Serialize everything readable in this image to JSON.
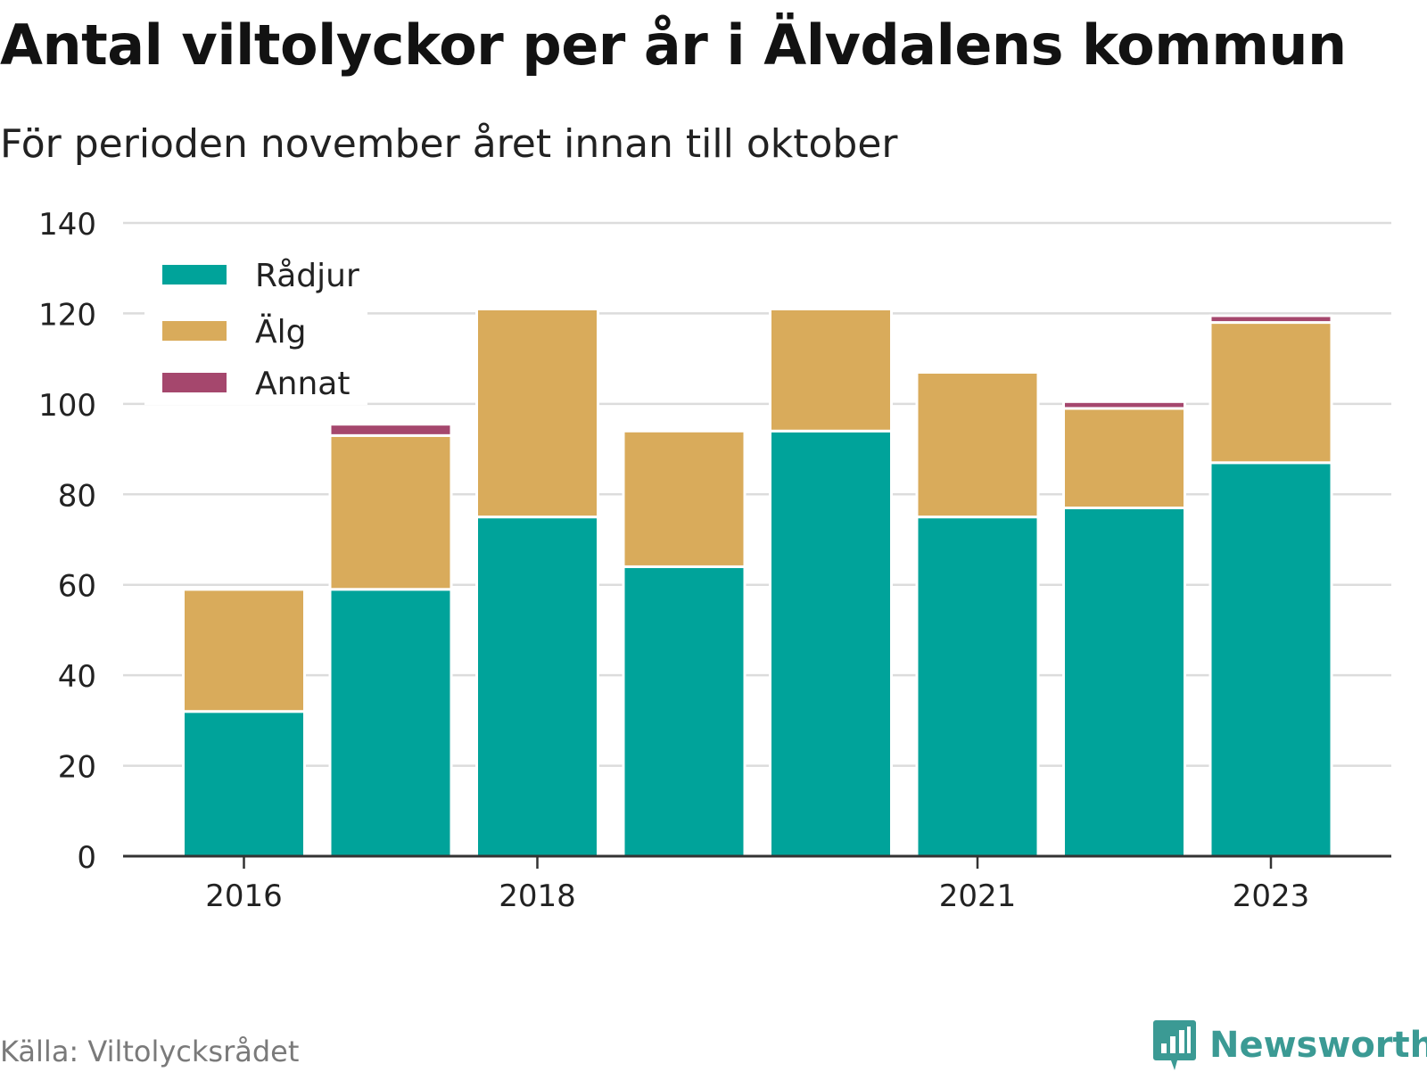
{
  "title": "Antal viltolyckor per år i Älvdalens kommun",
  "subtitle": "För perioden november året innan till oktober",
  "source": "Källa: Viltolycksrådet",
  "brand": {
    "name": "Newsworthy",
    "icon": "bar-chart-logo-icon",
    "color": "#3b9a94"
  },
  "chart_data": {
    "type": "bar",
    "stacked": true,
    "categories": [
      "2016",
      "2017",
      "2018",
      "2019",
      "2020",
      "2021",
      "2022",
      "2023"
    ],
    "x_tick_labels": [
      "2016",
      "",
      "2018",
      "",
      "",
      "2021",
      "",
      "2023"
    ],
    "series": [
      {
        "name": "Rådjur",
        "color": "#00a39a",
        "values": [
          32,
          59,
          75,
          64,
          94,
          75,
          77,
          87
        ]
      },
      {
        "name": "Älg",
        "color": "#d9ab5b",
        "values": [
          27,
          34,
          46,
          30,
          27,
          32,
          22,
          31
        ]
      },
      {
        "name": "Annat",
        "color": "#a5476d",
        "values": [
          0.3,
          2.5,
          0.3,
          0,
          0.3,
          0.3,
          1.5,
          1.5
        ]
      }
    ],
    "ylim": [
      0,
      140
    ],
    "yticks": [
      0,
      20,
      40,
      60,
      80,
      100,
      120,
      140
    ],
    "grid": true,
    "legend_position": "top-left"
  }
}
